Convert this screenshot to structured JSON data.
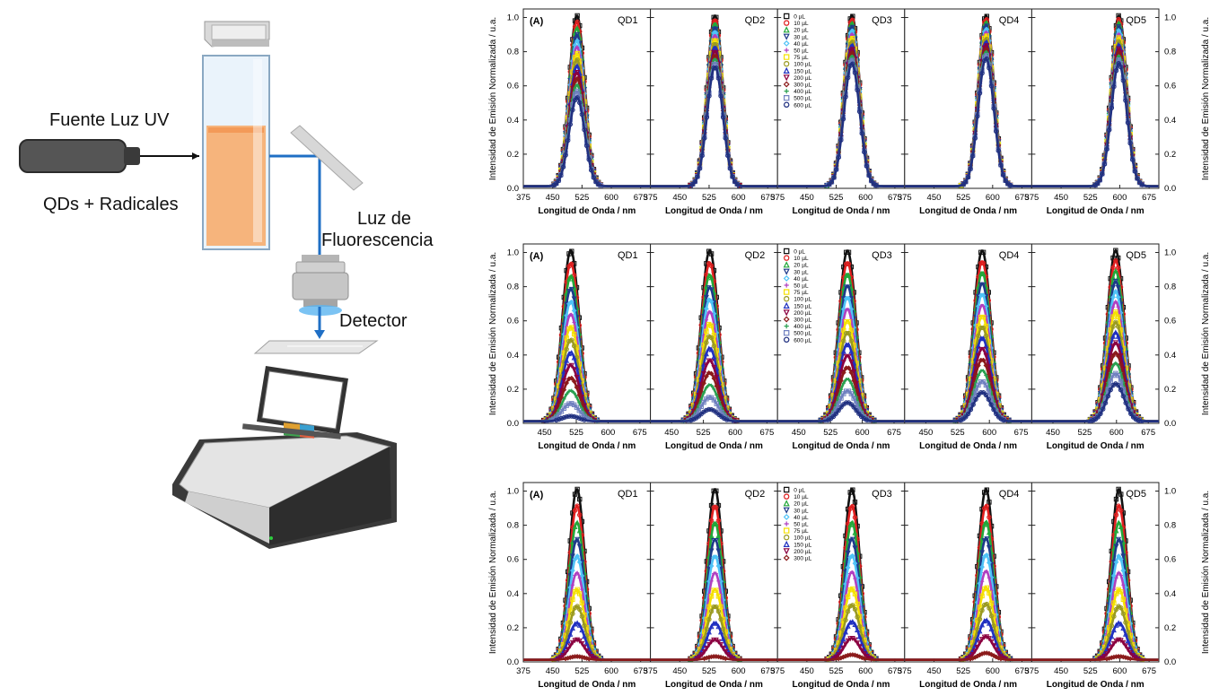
{
  "setup": {
    "uv_source_label": "Fuente Luz UV",
    "sample_label": "QDs + Radicales",
    "fluorescence_label_line1": "Luz de",
    "fluorescence_label_line2": "Fluorescencia",
    "detector_label": "Detector",
    "colors": {
      "liquid": "#f6b47c",
      "beam": "#1f6fc5",
      "device_body": "#3a3a3a"
    }
  },
  "chart_data": [
    {
      "type": "line",
      "panel_letter": "(A)",
      "ylabel": "Intensidad de Emisión Normalizada / u.a.",
      "xlabel": "Longitud de Onda / nm",
      "yticks": [
        "0.0",
        "0.2",
        "0.4",
        "0.6",
        "0.8",
        "1.0"
      ],
      "ylim": [
        0,
        1.05
      ],
      "legend": [
        "0 µL",
        "10 µL",
        "20 µL",
        "30 µL",
        "40 µL",
        "50 µL",
        "75 µL",
        "100 µL",
        "150 µL",
        "200 µL",
        "300 µL",
        "400 µL",
        "500 µL",
        "600 µL"
      ],
      "legend_panel": "QD3",
      "panels": [
        {
          "name": "QD1",
          "peak_nm": 512,
          "xlim": [
            375,
            700
          ],
          "xticks": [
            "375",
            "450",
            "525",
            "600",
            "675"
          ],
          "min_peak": 0.52
        },
        {
          "name": "QD2",
          "peak_nm": 540,
          "xlim": [
            375,
            700
          ],
          "xticks": [
            "375",
            "450",
            "525",
            "600",
            "675"
          ],
          "min_peak": 0.7
        },
        {
          "name": "QD3",
          "peak_nm": 565,
          "xlim": [
            375,
            700
          ],
          "xticks": [
            "375",
            "450",
            "525",
            "600",
            "675"
          ],
          "min_peak": 0.72
        },
        {
          "name": "QD4",
          "peak_nm": 583,
          "xlim": [
            375,
            700
          ],
          "xticks": [
            "375",
            "450",
            "525",
            "600",
            "675"
          ],
          "min_peak": 0.75
        },
        {
          "name": "QD5",
          "peak_nm": 598,
          "xlim": [
            375,
            700
          ],
          "xticks": [
            "375",
            "450",
            "525",
            "600",
            "675"
          ],
          "min_peak": 0.72
        }
      ]
    },
    {
      "type": "line",
      "panel_letter": "(A)",
      "ylabel": "Intensidad de Emisión Normalizada / u.a.",
      "xlabel": "Longitud de Onda / nm",
      "yticks": [
        "0.0",
        "0.2",
        "0.4",
        "0.6",
        "0.8",
        "1.0"
      ],
      "ylim": [
        0,
        1.05
      ],
      "legend": [
        "0 µL",
        "10 µL",
        "20 µL",
        "30 µL",
        "40 µL",
        "50 µL",
        "75 µL",
        "100 µL",
        "150 µL",
        "200 µL",
        "300 µL",
        "400 µL",
        "500 µL",
        "600 µL"
      ],
      "legend_panel": "QD3",
      "panels": [
        {
          "name": "QD1",
          "peak_nm": 512,
          "xlim": [
            400,
            700
          ],
          "xticks": [
            "450",
            "525",
            "600",
            "675"
          ],
          "min_peak": 0.03
        },
        {
          "name": "QD2",
          "peak_nm": 540,
          "xlim": [
            400,
            700
          ],
          "xticks": [
            "450",
            "525",
            "600",
            "675"
          ],
          "min_peak": 0.07
        },
        {
          "name": "QD3",
          "peak_nm": 565,
          "xlim": [
            400,
            700
          ],
          "xticks": [
            "450",
            "525",
            "600",
            "675"
          ],
          "min_peak": 0.11
        },
        {
          "name": "QD4",
          "peak_nm": 583,
          "xlim": [
            400,
            700
          ],
          "xticks": [
            "450",
            "525",
            "600",
            "675"
          ],
          "min_peak": 0.17
        },
        {
          "name": "QD5",
          "peak_nm": 598,
          "xlim": [
            400,
            700
          ],
          "xticks": [
            "450",
            "525",
            "600",
            "675"
          ],
          "min_peak": 0.22
        }
      ]
    },
    {
      "type": "line",
      "panel_letter": "(A)",
      "ylabel": "Intensidad de Emisión Normalizada / u.a.",
      "xlabel": "Longitud de Onda / nm",
      "yticks": [
        "0.0",
        "0.2",
        "0.4",
        "0.6",
        "0.8",
        "1.0"
      ],
      "ylim": [
        0,
        1.05
      ],
      "legend": [
        "0 µL",
        "10 µL",
        "20 µL",
        "30 µL",
        "40 µL",
        "50 µL",
        "75 µL",
        "100 µL",
        "150 µL",
        "200 µL",
        "300 µL"
      ],
      "legend_panel": "QD3",
      "panels": [
        {
          "name": "QD1",
          "peak_nm": 512,
          "xlim": [
            375,
            700
          ],
          "xticks": [
            "375",
            "450",
            "525",
            "600",
            "675"
          ],
          "min_peak": 0.02
        },
        {
          "name": "QD2",
          "peak_nm": 540,
          "xlim": [
            375,
            700
          ],
          "xticks": [
            "375",
            "450",
            "525",
            "600",
            "675"
          ],
          "min_peak": 0.02
        },
        {
          "name": "QD3",
          "peak_nm": 565,
          "xlim": [
            375,
            700
          ],
          "xticks": [
            "375",
            "450",
            "525",
            "600",
            "675"
          ],
          "min_peak": 0.03
        },
        {
          "name": "QD4",
          "peak_nm": 583,
          "xlim": [
            375,
            700
          ],
          "xticks": [
            "375",
            "450",
            "525",
            "600",
            "675"
          ],
          "min_peak": 0.04
        },
        {
          "name": "QD5",
          "peak_nm": 598,
          "xlim": [
            375,
            700
          ],
          "xticks": [
            "375",
            "450",
            "525",
            "600",
            "675"
          ],
          "min_peak": 0.02
        }
      ]
    }
  ],
  "series_colors": [
    "#111111",
    "#e02020",
    "#22a83a",
    "#1e3a8a",
    "#4fc3f7",
    "#b040c0",
    "#f5e100",
    "#9a9a20",
    "#2030c0",
    "#8b0040",
    "#8b1a1a",
    "#2aa050",
    "#7080c0",
    "#203080"
  ]
}
